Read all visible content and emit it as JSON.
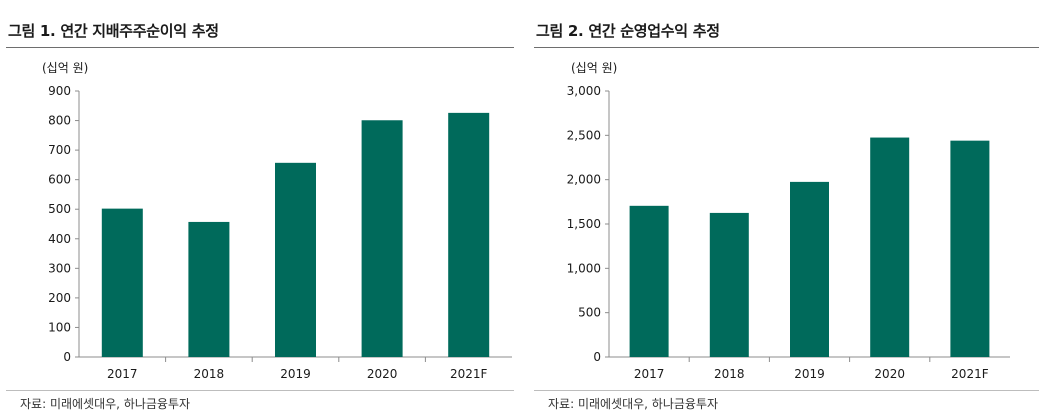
{
  "colors": {
    "bar": "#006a5b",
    "axis": "#8c8c8c"
  },
  "charts": [
    {
      "title": "그림 1. 연간 지배주주순이익 추정",
      "source": "자료: 미래에셋대우, 하나금융투자",
      "chart_data": {
        "type": "bar",
        "title": "그림 1. 연간 지배주주순이익 추정",
        "unit_label": "(십억 원)",
        "categories": [
          "2017",
          "2018",
          "2019",
          "2020",
          "2021F"
        ],
        "values": [
          502,
          457,
          657,
          801,
          826
        ],
        "ylim": [
          0,
          900
        ],
        "yticks": [
          0,
          100,
          200,
          300,
          400,
          500,
          600,
          700,
          800,
          900
        ],
        "ytick_labels": [
          "0",
          "100",
          "200",
          "300",
          "400",
          "500",
          "600",
          "700",
          "800",
          "900"
        ],
        "grid": false,
        "legend": "none"
      }
    },
    {
      "title": "그림 2. 연간 순영업수익 추정",
      "source": "자료: 미래에셋대우, 하나금융투자",
      "chart_data": {
        "type": "bar",
        "title": "그림 2. 연간 순영업수익 추정",
        "unit_label": "(십억 원)",
        "categories": [
          "2017",
          "2018",
          "2019",
          "2020",
          "2021F"
        ],
        "values": [
          1705,
          1625,
          1975,
          2475,
          2440
        ],
        "ylim": [
          0,
          3000
        ],
        "yticks": [
          0,
          500,
          1000,
          1500,
          2000,
          2500,
          3000
        ],
        "ytick_labels": [
          "0",
          "500",
          "1,000",
          "1,500",
          "2,000",
          "2,500",
          "3,000"
        ],
        "grid": false,
        "legend": "none"
      }
    }
  ]
}
